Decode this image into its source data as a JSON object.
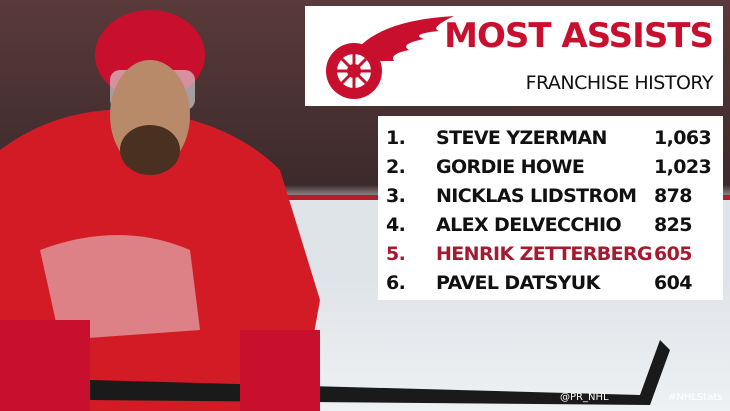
{
  "header": {
    "title": "MOST ASSISTS",
    "subtitle": "FRANCHISE HISTORY"
  },
  "table": {
    "rows": [
      [
        "1.",
        "STEVE YZERMAN",
        "1,063"
      ],
      [
        "2.",
        "GORDIE HOWE",
        "1,023"
      ],
      [
        "3.",
        "NICKLAS LIDSTROM",
        "878"
      ],
      [
        "4.",
        "ALEX DELVECCHIO",
        "825"
      ],
      [
        "5.",
        "HENRIK ZETTERBERG",
        "605"
      ],
      [
        "6.",
        "PAVEL DATSYUK",
        "604"
      ]
    ],
    "highlight_row": 4
  },
  "footer": {
    "handle": "@PR_NHL",
    "hashtag": "#NHLStats"
  }
}
